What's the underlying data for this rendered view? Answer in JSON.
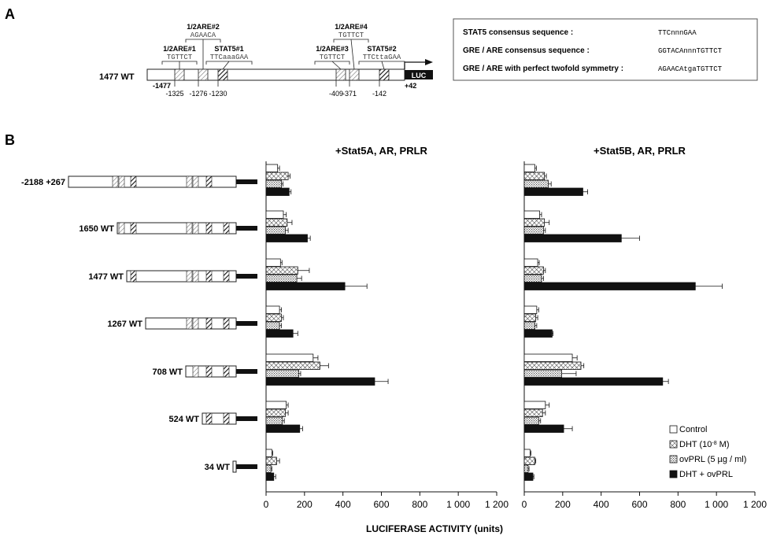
{
  "panel_a": {
    "label": "A",
    "construct_label": "1477 WT",
    "luc_label": "LUC",
    "end_label": "+42",
    "start_label": "-1477",
    "elements": [
      {
        "name": "1/2ARE#1",
        "seq": "TGTTCT",
        "pos": "-1325"
      },
      {
        "name": "1/2ARE#2",
        "seq": "AGAACA",
        "pos": "-1276"
      },
      {
        "name": "STAT5#1",
        "seq": "TTCaaaGAA",
        "pos": "-1230"
      },
      {
        "name": "1/2ARE#3",
        "seq": "TGTTCT",
        "pos": "-409"
      },
      {
        "name": "1/2ARE#4",
        "seq": "TGTTCT",
        "pos": "-371"
      },
      {
        "name": "STAT5#2",
        "seq": "TTCttaGAA",
        "pos": "-142"
      }
    ],
    "consensus_box": [
      {
        "label": "STAT5 consensus sequence :",
        "seq": "TTCnnnGAA"
      },
      {
        "label": "GRE / ARE consensus sequence :",
        "seq": "GGTACAnnnTGTTCT"
      },
      {
        "label": "GRE / ARE with perfect twofold symmetry :",
        "seq": "AGAACAtgaTGTTCT"
      }
    ]
  },
  "panel_b": {
    "label": "B",
    "x_axis_label": "LUCIFERASE ACTIVITY (units)",
    "constructs": [
      "-2188 +267",
      "1650 WT",
      "1477 WT",
      "1267 WT",
      "708 WT",
      "524 WT",
      "34 WT"
    ],
    "legend": [
      {
        "label": "Control",
        "pattern": "white"
      },
      {
        "label": "DHT (10",
        "sup": "-8",
        "suffix": " M)",
        "pattern": "cross"
      },
      {
        "label": "ovPRL (5 µg / ml)",
        "pattern": "dots"
      },
      {
        "label": "DHT + ovPRL",
        "pattern": "black"
      }
    ]
  },
  "chart_data": [
    {
      "type": "bar",
      "title": "+Stat5A, AR, PRLR",
      "xlabel": "LUCIFERASE ACTIVITY (units)",
      "xlim": [
        0,
        1200
      ],
      "ticks": [
        "0",
        "200",
        "400",
        "600",
        "800",
        "1 000",
        "1 200"
      ],
      "categories": [
        "-2188 +267",
        "1650 WT",
        "1477 WT",
        "1267 WT",
        "708 WT",
        "524 WT",
        "34 WT"
      ],
      "series": [
        {
          "name": "Control",
          "values": [
            60,
            90,
            75,
            70,
            245,
            105,
            30
          ],
          "errors": [
            10,
            15,
            8,
            10,
            25,
            10,
            5
          ]
        },
        {
          "name": "DHT (10-8 M)",
          "values": [
            115,
            110,
            165,
            80,
            280,
            100,
            55
          ],
          "errors": [
            10,
            25,
            60,
            10,
            45,
            15,
            15
          ]
        },
        {
          "name": "ovPRL (5 µg / ml)",
          "values": [
            80,
            100,
            160,
            70,
            170,
            85,
            25
          ],
          "errors": [
            8,
            15,
            25,
            10,
            10,
            10,
            5
          ]
        },
        {
          "name": "DHT + ovPRL",
          "values": [
            120,
            215,
            410,
            140,
            565,
            175,
            40
          ],
          "errors": [
            10,
            15,
            115,
            25,
            70,
            15,
            10
          ]
        }
      ]
    },
    {
      "type": "bar",
      "title": "+Stat5B, AR, PRLR",
      "xlabel": "LUCIFERASE ACTIVITY (units)",
      "xlim": [
        0,
        1200
      ],
      "ticks": [
        "0",
        "200",
        "400",
        "600",
        "800",
        "1 000",
        "1 200"
      ],
      "categories": [
        "-2188 +267",
        "1650 WT",
        "1477 WT",
        "1267 WT",
        "708 WT",
        "524 WT",
        "34 WT"
      ],
      "series": [
        {
          "name": "Control",
          "values": [
            55,
            80,
            70,
            65,
            250,
            110,
            30
          ],
          "errors": [
            8,
            10,
            8,
            10,
            25,
            20,
            5
          ]
        },
        {
          "name": "DHT (10-8 M)",
          "values": [
            105,
            105,
            100,
            60,
            295,
            95,
            55
          ],
          "errors": [
            10,
            25,
            10,
            10,
            15,
            15,
            5
          ]
        },
        {
          "name": "ovPRL (5 µg / ml)",
          "values": [
            125,
            100,
            90,
            55,
            195,
            75,
            20
          ],
          "errors": [
            15,
            10,
            10,
            10,
            75,
            10,
            5
          ]
        },
        {
          "name": "DHT + ovPRL",
          "values": [
            305,
            505,
            890,
            145,
            720,
            205,
            45
          ],
          "errors": [
            25,
            95,
            140,
            5,
            30,
            45,
            5
          ]
        }
      ]
    }
  ]
}
